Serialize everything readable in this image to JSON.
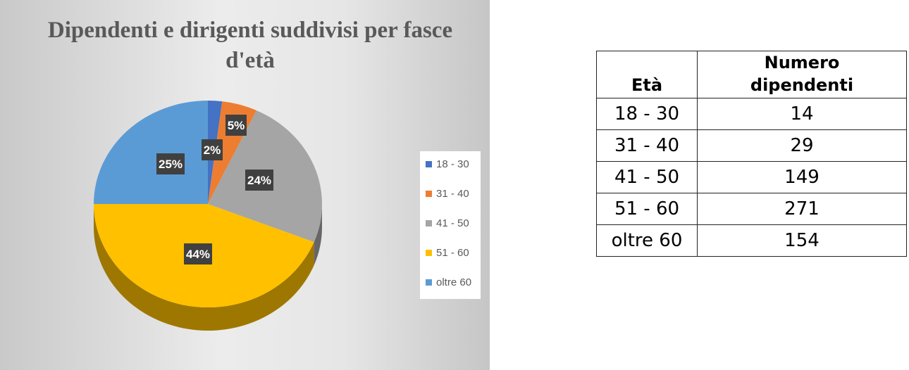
{
  "chart_data": {
    "type": "pie",
    "title": "Dipendenti e dirigenti suddivisi per fasce d'età",
    "categories": [
      "18 - 30",
      "31 - 40",
      "41 - 50",
      "51 - 60",
      "oltre 60"
    ],
    "values": [
      2,
      5,
      24,
      44,
      25
    ],
    "value_labels": [
      "2%",
      "5%",
      "24%",
      "44%",
      "25%"
    ],
    "colors": [
      "#4472c4",
      "#ed7d31",
      "#a5a5a5",
      "#ffc000",
      "#5b9bd5"
    ],
    "legend_position": "right",
    "style": "3d"
  },
  "table": {
    "headers": [
      "Età",
      "Numero dipendenti"
    ],
    "rows": [
      [
        "18 - 30",
        "14"
      ],
      [
        "31 - 40",
        "29"
      ],
      [
        "41 - 50",
        "149"
      ],
      [
        "51 - 60",
        "271"
      ],
      [
        "oltre 60",
        "154"
      ]
    ]
  }
}
